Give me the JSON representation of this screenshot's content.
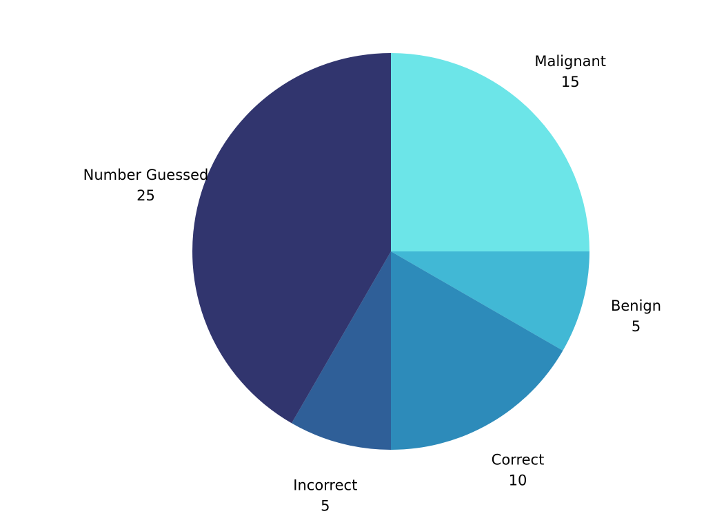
{
  "chart_data": {
    "type": "pie",
    "title": "",
    "start_angle_deg": 0,
    "direction": "clockwise",
    "slices": [
      {
        "name": "Malignant",
        "value": 15,
        "color": "#6ce5e8"
      },
      {
        "name": "Benign",
        "value": 5,
        "color": "#41b8d5"
      },
      {
        "name": "Correct",
        "value": 10,
        "color": "#2d8bba"
      },
      {
        "name": "Incorrect",
        "value": 5,
        "color": "#2f5f98"
      },
      {
        "name": "Number Guessed",
        "value": 25,
        "color": "#31356e"
      }
    ]
  }
}
